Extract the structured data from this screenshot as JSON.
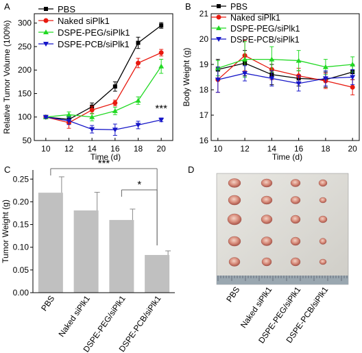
{
  "panels": {
    "A": {
      "letter": "A"
    },
    "B": {
      "letter": "B"
    },
    "C": {
      "letter": "C"
    },
    "D": {
      "letter": "D"
    }
  },
  "chart_data": [
    {
      "id": "A",
      "type": "line",
      "xlabel": "Time (d)",
      "ylabel": "Relative Tumor Volume (100%)",
      "x": [
        10,
        12,
        14,
        16,
        18,
        20
      ],
      "xlim": [
        9,
        21
      ],
      "ylim": [
        50,
        320
      ],
      "xticks": [
        10,
        12,
        14,
        16,
        18,
        20
      ],
      "yticks": [
        50,
        100,
        150,
        200,
        250,
        300
      ],
      "legend_position": "top-left",
      "annotation": "***",
      "series": [
        {
          "name": "PBS",
          "color": "#000000",
          "marker": "square",
          "values": [
            100,
            95,
            122,
            165,
            258,
            295
          ],
          "errors": [
            2,
            8,
            8,
            10,
            12,
            6
          ]
        },
        {
          "name": "Naked siPlk1",
          "color": "#e8190f",
          "marker": "circle",
          "values": [
            100,
            88,
            115,
            130,
            215,
            237
          ],
          "errors": [
            2,
            12,
            8,
            6,
            10,
            7
          ]
        },
        {
          "name": "DSPE-PEG/siPlk1",
          "color": "#21d923",
          "marker": "triangle-up",
          "values": [
            100,
            105,
            100,
            113,
            135,
            208
          ],
          "errors": [
            2,
            6,
            8,
            8,
            8,
            15
          ]
        },
        {
          "name": "DSPE-PCB/siPlk1",
          "color": "#1515c8",
          "marker": "triangle-down",
          "values": [
            100,
            92,
            74,
            73,
            83,
            94
          ],
          "errors": [
            2,
            8,
            8,
            12,
            8,
            4
          ]
        }
      ]
    },
    {
      "id": "B",
      "type": "line",
      "xlabel": "Time (d)",
      "ylabel": "Body Weight (g)",
      "x": [
        10,
        12,
        14,
        16,
        18,
        20
      ],
      "xlim": [
        9.5,
        20.5
      ],
      "ylim": [
        16,
        21
      ],
      "xticks": [
        10,
        12,
        14,
        16,
        18,
        20
      ],
      "yticks": [
        16,
        17,
        18,
        19,
        20,
        21
      ],
      "legend_position": "top-left",
      "series": [
        {
          "name": "PBS",
          "color": "#000000",
          "marker": "square",
          "values": [
            18.8,
            19.05,
            18.6,
            18.45,
            18.4,
            18.7
          ],
          "errors": [
            0.4,
            0.5,
            0.4,
            0.3,
            0.3,
            0.3
          ]
        },
        {
          "name": "Naked siPlk1",
          "color": "#e8190f",
          "marker": "circle",
          "values": [
            18.4,
            19.35,
            18.8,
            18.55,
            18.35,
            18.1
          ],
          "errors": [
            0.5,
            0.6,
            0.4,
            0.3,
            0.3,
            0.3
          ]
        },
        {
          "name": "DSPE-PEG/siPlk1",
          "color": "#21d923",
          "marker": "triangle-up",
          "values": [
            18.85,
            19.2,
            19.2,
            19.15,
            18.9,
            19.0
          ],
          "errors": [
            0.3,
            0.7,
            0.5,
            0.4,
            0.3,
            0.3
          ]
        },
        {
          "name": "DSPE-PCB/siPlk1",
          "color": "#1515c8",
          "marker": "triangle-down",
          "values": [
            18.4,
            18.65,
            18.45,
            18.25,
            18.45,
            18.5
          ],
          "errors": [
            0.5,
            0.3,
            0.3,
            0.3,
            0.3,
            0.3
          ]
        }
      ]
    },
    {
      "id": "C",
      "type": "bar",
      "ylabel": "Tumor Weight (g)",
      "categories": [
        "PBS",
        "Naked siPlk1",
        "DSPE-PEG/siPlk1",
        "DSPE-PCB/siPlk1"
      ],
      "values": [
        0.22,
        0.181,
        0.16,
        0.083
      ],
      "errors": [
        0.035,
        0.04,
        0.024,
        0.009
      ],
      "ylim": [
        0,
        0.27
      ],
      "yticks": [
        0.0,
        0.05,
        0.1,
        0.15,
        0.2,
        0.25
      ],
      "ytick_labels": [
        "0.00",
        "0.05",
        "0.10",
        "0.15",
        "0.20",
        "0.25"
      ],
      "bar_color": "#c0c0c0",
      "significance": [
        {
          "from": 0,
          "to": 3,
          "label": "***"
        },
        {
          "from": 2,
          "to": 3,
          "label": "*"
        }
      ]
    }
  ],
  "photo": {
    "labels": [
      "PBS",
      "Naked siPlk1",
      "DSPE-PEG/siPlk1",
      "DSPE-PCB/siPlk1"
    ],
    "rows": 5,
    "columns": 4
  }
}
